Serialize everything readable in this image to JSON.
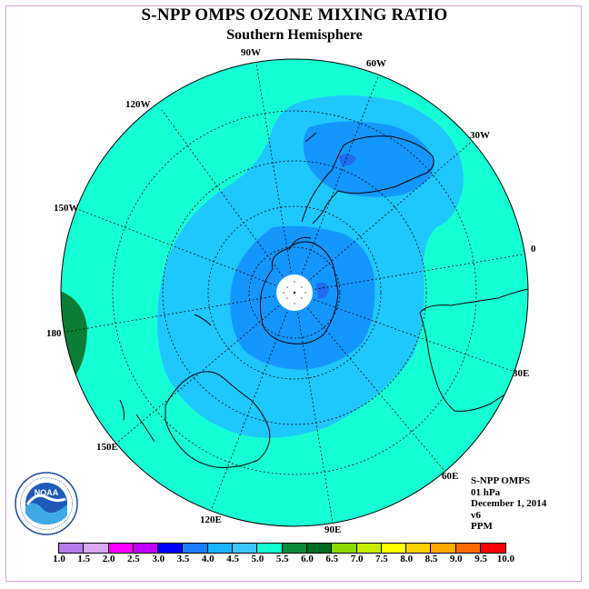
{
  "title": "S-NPP OMPS OZONE MIXING RATIO",
  "subtitle": "Southern Hemisphere",
  "longitude_labels": [
    "90W",
    "60W",
    "30W",
    "120W",
    "150W",
    "0",
    "180",
    "30E",
    "150E",
    "60E",
    "120E",
    "90E"
  ],
  "info": {
    "instrument": "S-NPP OMPS",
    "level": "01 hPa",
    "date": "December 1, 2014",
    "version": "v6",
    "units": "PPM"
  },
  "colorbar": {
    "ticks": [
      "1.0",
      "1.5",
      "2.0",
      "2.5",
      "3.0",
      "3.5",
      "4.0",
      "4.5",
      "5.0",
      "5.5",
      "6.0",
      "6.5",
      "7.0",
      "7.5",
      "8.0",
      "8.5",
      "9.0",
      "9.5",
      "10.0"
    ],
    "colors": [
      "#b57be8",
      "#d9a8f0",
      "#ff00ff",
      "#c000ff",
      "#0000ff",
      "#1a7dff",
      "#18b4ff",
      "#3cc8ff",
      "#12ffd0",
      "#0b8a3a",
      "#006b22",
      "#8cd800",
      "#c6ee00",
      "#ffff00",
      "#ffd000",
      "#ffa800",
      "#ff6a00",
      "#ff0000",
      "#8b5a3c"
    ]
  },
  "logo_text": "NOAA",
  "field_colors": {
    "background_4_5_to_5": "#15ffd4",
    "band_4_0_to_4_5": "#1ec8ff",
    "band_3_5_to_4_0": "#1496ff",
    "band_3_0_to_3_5": "#1e78ff",
    "band_5_0_to_5_5": "#0b8a3a"
  }
}
